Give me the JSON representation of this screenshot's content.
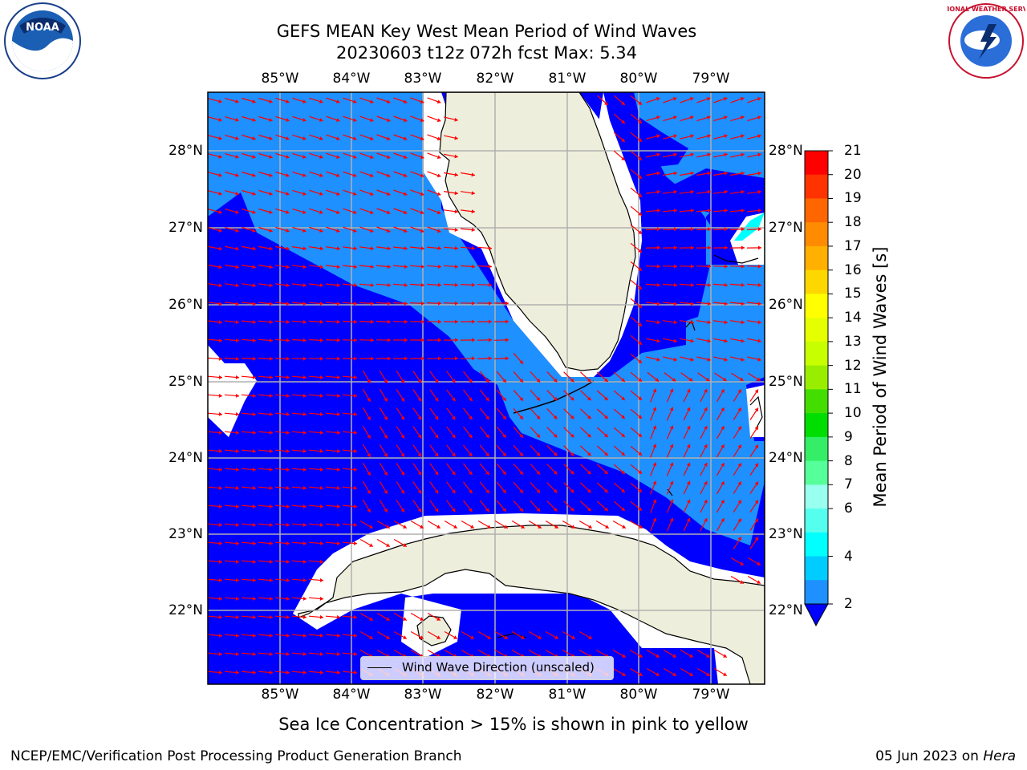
{
  "title": {
    "line1": "GEFS MEAN Key West Mean Period of Wind Waves",
    "line2": "20230603 t12z 072h fcst   Max: 5.34"
  },
  "logos": {
    "left": {
      "name": "noaa-logo",
      "text": "NOAA"
    },
    "right": {
      "name": "nws-logo",
      "text": "NATIONAL WEATHER SERVICE"
    }
  },
  "map": {
    "lon_labels": [
      "85°W",
      "84°W",
      "83°W",
      "82°W",
      "81°W",
      "80°W",
      "79°W"
    ],
    "lat_labels": [
      "28°N",
      "27°N",
      "26°N",
      "25°N",
      "24°N",
      "23°N",
      "22°N"
    ],
    "colors": {
      "deep_blue": "#0000ff",
      "mid_blue": "#1e90ff",
      "land": "#eeeedc",
      "no_data": "#ffffff",
      "arrow": "#ff0000",
      "grid": "#b0b0b0"
    }
  },
  "legend": {
    "label": "Wind Wave Direction (unscaled)"
  },
  "colorbar": {
    "title": "Mean Period of Wind Waves [s]",
    "ticks": [
      "21",
      "20",
      "19",
      "18",
      "17",
      "16",
      "15",
      "14",
      "13",
      "12",
      "11",
      "10",
      "9",
      "8",
      "7",
      "6",
      "4",
      "2"
    ],
    "colors": [
      "#ff0000",
      "#ff3300",
      "#ff6600",
      "#ff8c00",
      "#ffb000",
      "#ffd700",
      "#ffff00",
      "#e6ff00",
      "#c8ff00",
      "#99ee00",
      "#44dd00",
      "#00dd00",
      "#33ee66",
      "#55ff99",
      "#99ffee",
      "#55ffee",
      "#00ffff",
      "#00ccff",
      "#1e90ff"
    ],
    "under_color": "#0000ff"
  },
  "note": "Sea Ice Concentration > 15% is shown in pink to yellow",
  "footer": {
    "left": "NCEP/EMC/Verification Post Processing Product Generation Branch",
    "right_date": "05 Jun 2023 on ",
    "right_machine": "Hera"
  }
}
